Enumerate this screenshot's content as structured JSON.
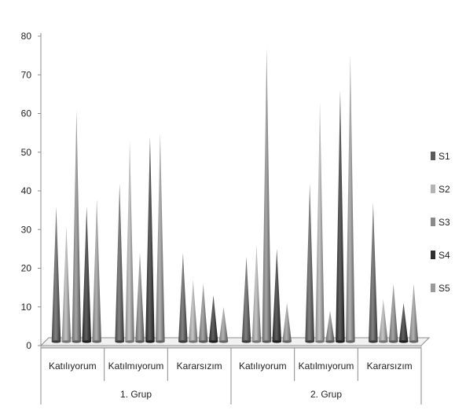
{
  "chart_data": {
    "type": "bar",
    "bar_shape": "cone-3d",
    "title": "",
    "xlabel": "",
    "ylabel": "",
    "ylim": [
      0,
      80
    ],
    "yticks": [
      "0",
      "10",
      "20",
      "30",
      "40",
      "50",
      "60",
      "70",
      "80"
    ],
    "grid": false,
    "legend_position": "right",
    "groups": [
      {
        "label": "1. Grup",
        "categories": [
          "Katılıyorum",
          "Katılmıyorum",
          "Kararsızım"
        ]
      },
      {
        "label": "2. Grup",
        "categories": [
          "Katılıyorum",
          "Katılmıyorum",
          "Kararsızım"
        ]
      }
    ],
    "categories": [
      "Katılıyorum",
      "Katılmıyorum",
      "Kararsızım",
      "Katılıyorum",
      "Katılmıyorum",
      "Kararsızım"
    ],
    "series": [
      {
        "name": "S1",
        "color": "#5a5a5a",
        "values": [
          35,
          41,
          23,
          22,
          41,
          36
        ]
      },
      {
        "name": "S2",
        "color": "#b4b4b4",
        "values": [
          30,
          52,
          16,
          25,
          62,
          11
        ]
      },
      {
        "name": "S3",
        "color": "#8a8a8a",
        "values": [
          60,
          23,
          15,
          76,
          8,
          15
        ]
      },
      {
        "name": "S4",
        "color": "#2e2e2e",
        "values": [
          35,
          53,
          12,
          24,
          65,
          10
        ]
      },
      {
        "name": "S5",
        "color": "#9a9a9a",
        "values": [
          37,
          54,
          9,
          10,
          74,
          15
        ]
      }
    ]
  }
}
